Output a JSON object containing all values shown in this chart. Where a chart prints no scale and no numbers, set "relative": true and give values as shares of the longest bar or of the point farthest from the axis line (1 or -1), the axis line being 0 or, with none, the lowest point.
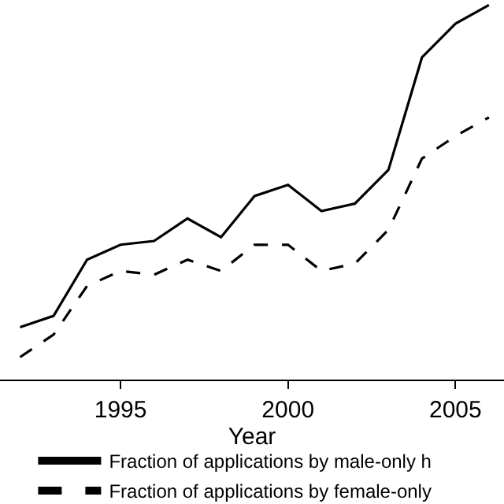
{
  "chart_data": {
    "type": "line",
    "xlabel": "Year",
    "relative": true,
    "x": [
      1992,
      1993,
      1994,
      1995,
      1996,
      1997,
      1998,
      1999,
      2000,
      2001,
      2002,
      2003,
      2004,
      2005,
      2006
    ],
    "xlim": [
      1991.4,
      2006.45
    ],
    "xticks": [
      1995,
      2000,
      2005
    ],
    "legend": "bottom",
    "marker": "none",
    "series": [
      {
        "name": "Fraction of applications by male-only h",
        "color": "#000000",
        "line_style": "solid",
        "values": [
          0.14,
          0.17,
          0.32,
          0.36,
          0.37,
          0.43,
          0.38,
          0.49,
          0.52,
          0.45,
          0.47,
          0.56,
          0.86,
          0.95,
          1.0
        ]
      },
      {
        "name": "Fraction of applications by female-only",
        "color": "#000000",
        "line_style": "dashed",
        "values": [
          0.06,
          0.12,
          0.25,
          0.29,
          0.28,
          0.32,
          0.29,
          0.36,
          0.36,
          0.29,
          0.31,
          0.4,
          0.59,
          0.65,
          0.7
        ]
      }
    ]
  }
}
